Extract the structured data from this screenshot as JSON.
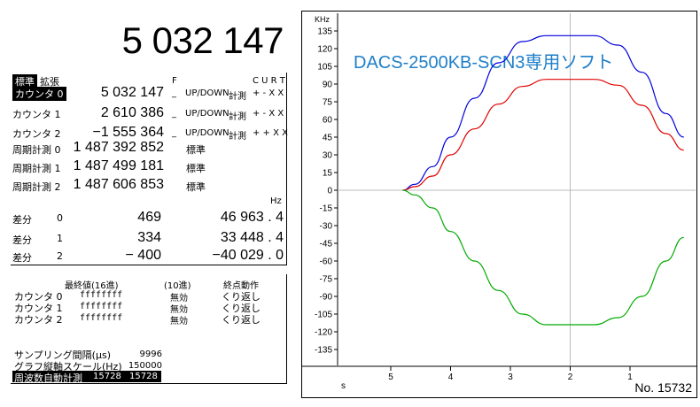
{
  "big_counter": "5 032 147",
  "tabs": {
    "standard": "標準",
    "extended": "拡張"
  },
  "headers": {
    "f": "F",
    "curt": "C U R T"
  },
  "counters": [
    {
      "label": "カウンタ 0",
      "value": "5 032 147",
      "f": "_",
      "mode": "UP/DOWN",
      "meas": "計測",
      "flags": "+ - X X"
    },
    {
      "label": "カウンタ 1",
      "value": "2 610 386",
      "f": "_",
      "mode": "UP/DOWN",
      "meas": "計測",
      "flags": "+ - X X"
    },
    {
      "label": "カウンタ 2",
      "value": "−1 555 364",
      "f": "_",
      "mode": "UP/DOWN",
      "meas": "計測",
      "flags": "+ + X X"
    }
  ],
  "periods": [
    {
      "label": "周期計測 0",
      "value": "1 487 392 852",
      "mode": "標準"
    },
    {
      "label": "周期計測 1",
      "value": "1 487 499 181",
      "mode": "標準"
    },
    {
      "label": "周期計測 2",
      "value": "1 487 606 853",
      "mode": "標準"
    }
  ],
  "hz_unit": "Hz",
  "diffs": [
    {
      "label": "差分",
      "idx": "0",
      "value": "469",
      "hz": "46 963 . 4"
    },
    {
      "label": "差分",
      "idx": "1",
      "value": "334",
      "hz": "33 448 . 4"
    },
    {
      "label": "差分",
      "idx": "2",
      "value": "− 400",
      "hz": "−40 029 . 0"
    }
  ],
  "final_table": {
    "col_final": "最終値(16進)",
    "col_dec": "(10進)",
    "col_end": "終点動作",
    "rows": [
      {
        "label": "カウンタ 0",
        "hex": "ffffffff",
        "dec": "無効",
        "end": "くり返し"
      },
      {
        "label": "カウンタ 1",
        "hex": "ffffffff",
        "dec": "無効",
        "end": "くり返し"
      },
      {
        "label": "カウンタ 2",
        "hex": "ffffffff",
        "dec": "無効",
        "end": "くり返し"
      }
    ]
  },
  "settings": {
    "sampling_label": "サンプリング間隔(μs)",
    "sampling_value": "9996",
    "scale_label": "グラフ縦軸スケール(Hz)",
    "scale_value": "150000",
    "auto_label": "周波数自動計測",
    "auto_v1": "15728",
    "auto_v2": "15728"
  },
  "graph": {
    "title": "DACS-2500KB-SCN3専用ソフト",
    "y_unit": "KHz",
    "x_unit": "s",
    "number_label": "No. 15732",
    "colors": {
      "blue": "#0000dd",
      "red": "#e00000",
      "green": "#00aa00",
      "title": "#1e7fc8"
    }
  },
  "chart_data": {
    "type": "line",
    "ylim": [
      -135,
      135
    ],
    "yticks": [
      135,
      120,
      105,
      90,
      75,
      60,
      45,
      30,
      15,
      0,
      -15,
      -30,
      -45,
      -60,
      -75,
      -90,
      -105,
      -120,
      -135
    ],
    "xticks": [
      5,
      4,
      3,
      2,
      1
    ],
    "series": [
      {
        "values": [
          0,
          5,
          20,
          45,
          78,
          108,
          126,
          131,
          131,
          131,
          123,
          100,
          65,
          45
        ]
      },
      {
        "values": [
          0,
          3,
          12,
          30,
          52,
          73,
          88,
          94,
          94,
          94,
          89,
          72,
          48,
          34
        ]
      },
      {
        "values": [
          0,
          -4,
          -15,
          -35,
          -60,
          -85,
          -105,
          -114,
          -114,
          -114,
          -108,
          -90,
          -60,
          -40
        ]
      }
    ],
    "x": [
      4.8,
      4.6,
      4.3,
      4.0,
      3.6,
      3.2,
      2.8,
      2.4,
      2.0,
      1.6,
      1.2,
      0.8,
      0.4,
      0.1
    ]
  }
}
